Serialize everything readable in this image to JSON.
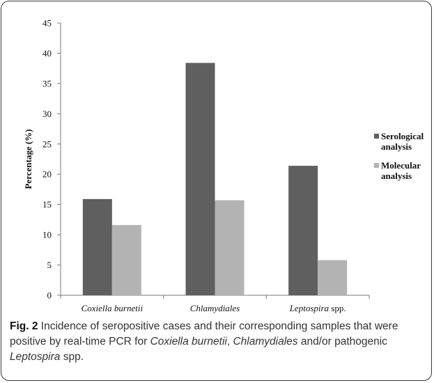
{
  "chart_data": {
    "type": "bar",
    "categories": [
      "Coxiella burnetii",
      "Chlamydiales",
      "Leptospira spp."
    ],
    "series": [
      {
        "name": "Serological analysis",
        "values": [
          15.9,
          38.4,
          21.4
        ],
        "color": "#5f5f5f"
      },
      {
        "name": "Molecular analysis",
        "values": [
          11.6,
          15.7,
          5.8
        ],
        "color": "#b3b3b3"
      }
    ],
    "ylabel": "Percentage (%)",
    "ylim": [
      0,
      45
    ],
    "yticks": [
      "0",
      "5",
      "10",
      "15",
      "20",
      "25",
      "30",
      "35",
      "40",
      "45"
    ],
    "legend": {
      "position": "right",
      "entries": [
        {
          "line1": "Serological",
          "line2": "analysis"
        },
        {
          "line1": "Molecular",
          "line2": "analysis"
        }
      ]
    },
    "category_labels": [
      {
        "italic": "Coxiella burnetii",
        "plain": ""
      },
      {
        "italic": "Chlamydiales",
        "plain": ""
      },
      {
        "italic": "Leptospira",
        "plain": " spp."
      }
    ],
    "grid": false
  },
  "caption": {
    "fig_label": "Fig. 2",
    "text_1": " Incidence of seropositive cases and their corresponding samples that were positive by real-time PCR for ",
    "italic_1": "Coxiella burnetii",
    "text_2": ", ",
    "italic_2": "Chlamydiales",
    "text_3": " and/or pathogenic ",
    "italic_3": "Leptospira",
    "text_4": " spp."
  }
}
